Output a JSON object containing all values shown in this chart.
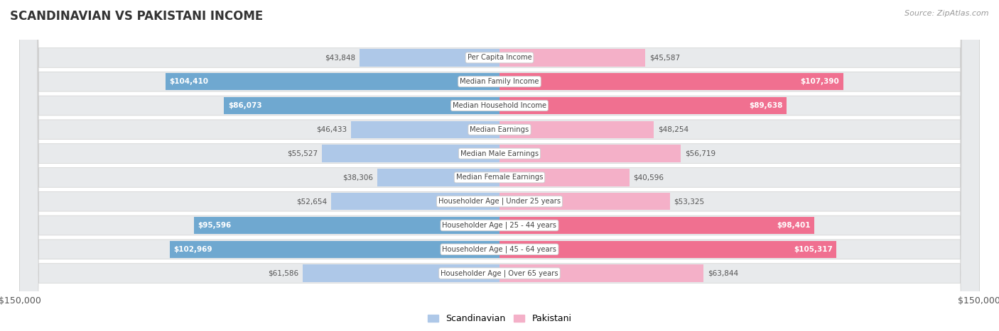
{
  "title": "SCANDINAVIAN VS PAKISTANI INCOME",
  "source": "Source: ZipAtlas.com",
  "categories": [
    "Per Capita Income",
    "Median Family Income",
    "Median Household Income",
    "Median Earnings",
    "Median Male Earnings",
    "Median Female Earnings",
    "Householder Age | Under 25 years",
    "Householder Age | 25 - 44 years",
    "Householder Age | 45 - 64 years",
    "Householder Age | Over 65 years"
  ],
  "scandinavian": [
    43848,
    104410,
    86073,
    46433,
    55527,
    38306,
    52654,
    95596,
    102969,
    61586
  ],
  "pakistani": [
    45587,
    107390,
    89638,
    48254,
    56719,
    40596,
    53325,
    98401,
    105317,
    63844
  ],
  "scandinavian_labels": [
    "$43,848",
    "$104,410",
    "$86,073",
    "$46,433",
    "$55,527",
    "$38,306",
    "$52,654",
    "$95,596",
    "$102,969",
    "$61,586"
  ],
  "pakistani_labels": [
    "$45,587",
    "$107,390",
    "$89,638",
    "$48,254",
    "$56,719",
    "$40,596",
    "$53,325",
    "$98,401",
    "$105,317",
    "$63,844"
  ],
  "scand_inside_color": "#6fa8d0",
  "pak_inside_color": "#f07090",
  "scand_outside_color": "#aec8e8",
  "pak_outside_color": "#f4b0c8",
  "inside_threshold": 70000,
  "max_val": 150000,
  "bg_color": "#ffffff",
  "row_bg_light": "#e8e8e8",
  "row_bg_white": "#f5f5f5",
  "label_text_dark": "#555555",
  "label_text_white": "#ffffff",
  "category_text": "#555555"
}
